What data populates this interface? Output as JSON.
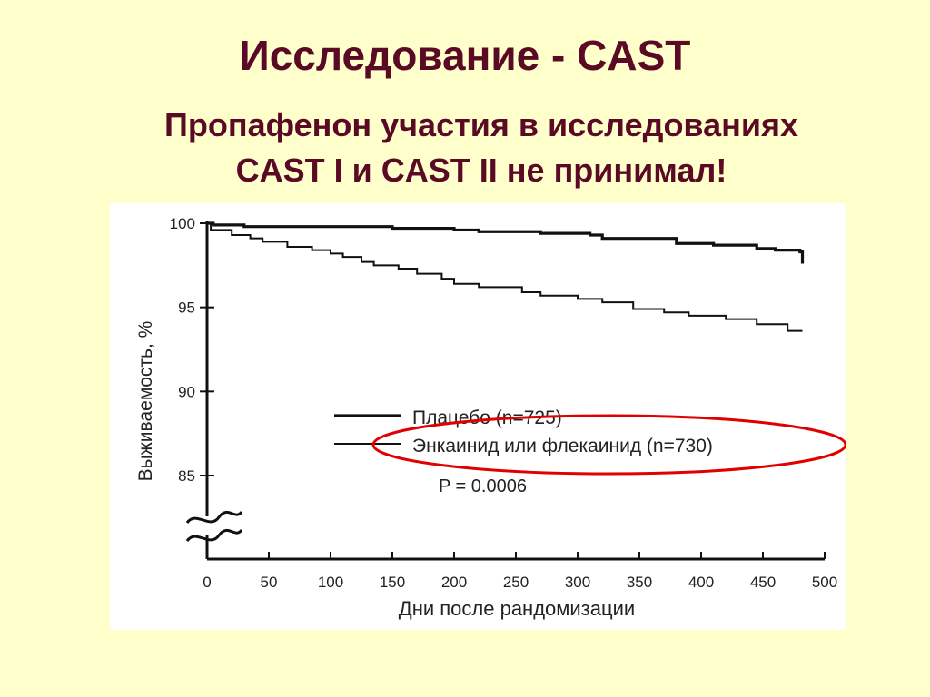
{
  "slide": {
    "title": "Исследование - CAST",
    "subtitle_line1": "Пропафенон участия в исследованиях",
    "subtitle_line2": "CAST I и   CAST II не принимал!"
  },
  "colors": {
    "background": "#ffffcc",
    "title": "#5a0a24",
    "highlight_ellipse": "#e00000",
    "series_line": "#111111"
  },
  "chart_data": {
    "type": "line",
    "xlabel": "Дни после рандомизации",
    "ylabel": "Выживаемость, %",
    "xlim": [
      0,
      500
    ],
    "ylim": [
      80,
      100
    ],
    "axis_break": true,
    "x_ticks": [
      0,
      50,
      100,
      150,
      200,
      250,
      300,
      350,
      400,
      450,
      500
    ],
    "y_ticks": [
      85,
      90,
      95,
      100
    ],
    "legend_position": "center-right",
    "annotation": "P = 0.0006",
    "series": [
      {
        "name": "Плацебо (n=725)",
        "points": [
          [
            0,
            100
          ],
          [
            5,
            99.9
          ],
          [
            10,
            99.9
          ],
          [
            30,
            99.8
          ],
          [
            130,
            99.8
          ],
          [
            150,
            99.7
          ],
          [
            200,
            99.6
          ],
          [
            220,
            99.5
          ],
          [
            270,
            99.4
          ],
          [
            310,
            99.3
          ],
          [
            320,
            99.1
          ],
          [
            380,
            98.8
          ],
          [
            410,
            98.7
          ],
          [
            445,
            98.5
          ],
          [
            460,
            98.4
          ],
          [
            480,
            98.3
          ],
          [
            482,
            97.6
          ]
        ]
      },
      {
        "name": "Энкаинид или флекаинид (n=730)",
        "points": [
          [
            0,
            100
          ],
          [
            3,
            99.6
          ],
          [
            10,
            99.6
          ],
          [
            20,
            99.3
          ],
          [
            35,
            99.1
          ],
          [
            45,
            98.9
          ],
          [
            65,
            98.6
          ],
          [
            85,
            98.4
          ],
          [
            100,
            98.2
          ],
          [
            110,
            98.0
          ],
          [
            125,
            97.7
          ],
          [
            135,
            97.5
          ],
          [
            155,
            97.3
          ],
          [
            170,
            97.0
          ],
          [
            190,
            96.7
          ],
          [
            200,
            96.4
          ],
          [
            220,
            96.2
          ],
          [
            255,
            95.9
          ],
          [
            270,
            95.7
          ],
          [
            300,
            95.5
          ],
          [
            320,
            95.3
          ],
          [
            345,
            94.9
          ],
          [
            370,
            94.7
          ],
          [
            390,
            94.5
          ],
          [
            420,
            94.3
          ],
          [
            445,
            94.0
          ],
          [
            470,
            93.6
          ],
          [
            482,
            93.6
          ]
        ]
      }
    ]
  }
}
